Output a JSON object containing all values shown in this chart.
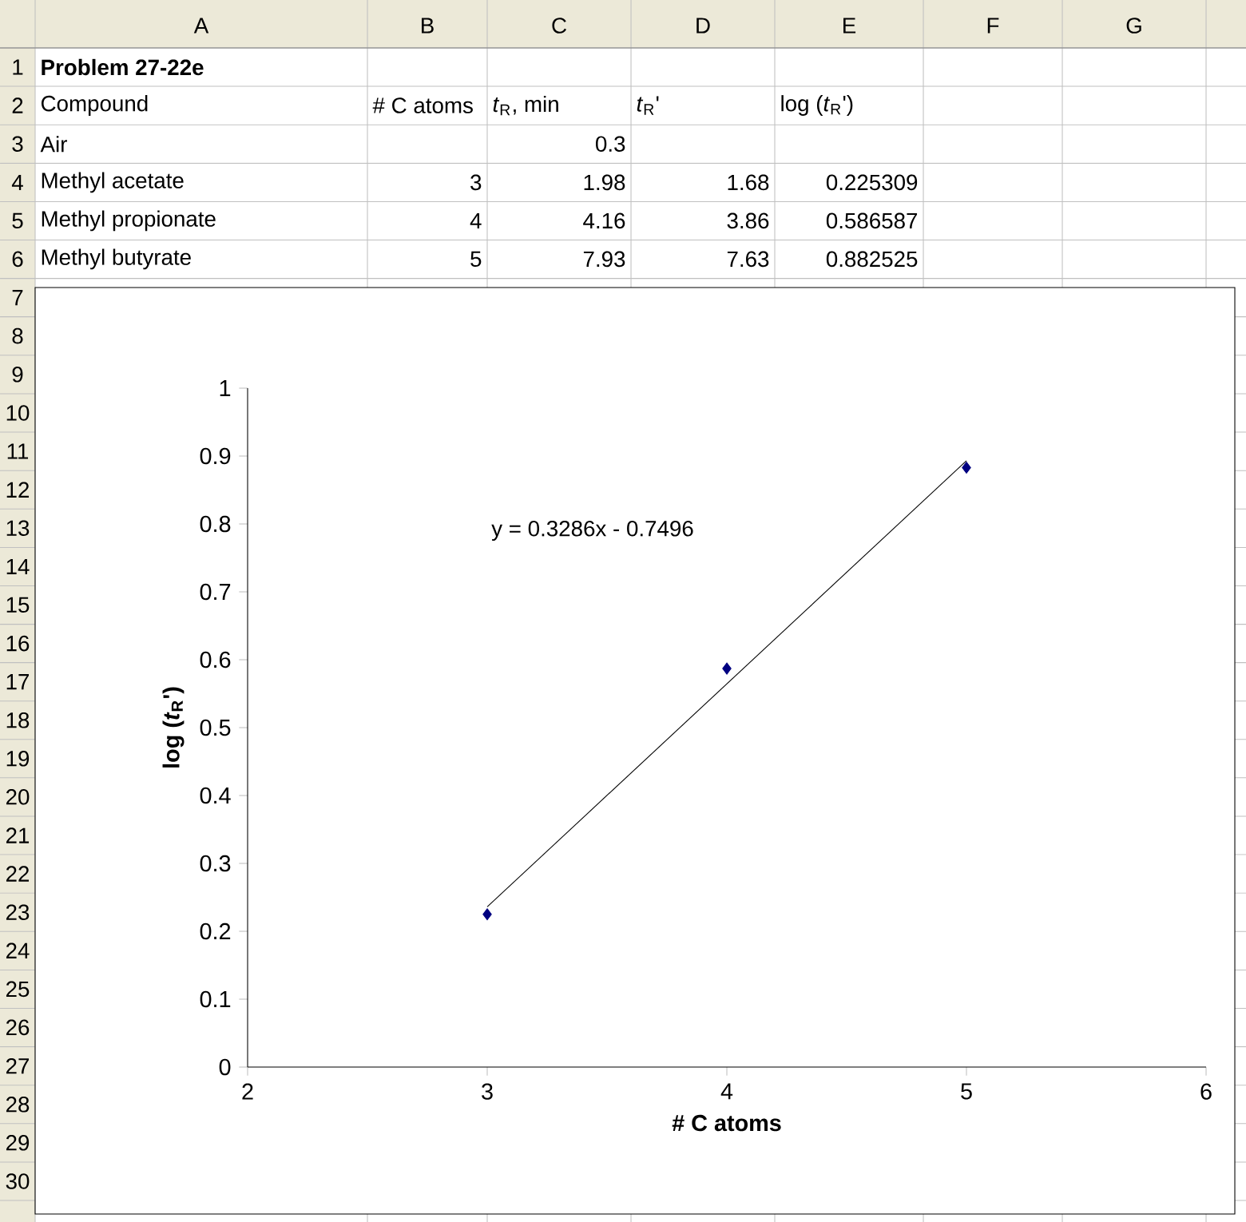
{
  "chart_data": {
    "type": "scatter",
    "series": [
      {
        "color": "#000080",
        "x": [
          3,
          4,
          5
        ],
        "values": [
          0.225,
          0.587,
          0.883
        ]
      },
      {
        "type": "line",
        "marker": "none",
        "color": "#000000",
        "x": [
          3,
          5
        ],
        "values": [
          0.236,
          0.893
        ]
      }
    ],
    "marker": "diamond",
    "xlabel": "# C atoms",
    "ylabel": "log (*t*$_{R}$')",
    "xlim": [
      2,
      6
    ],
    "xticks": [
      2,
      3,
      4,
      5,
      6
    ],
    "ylim": [
      0,
      1
    ],
    "yticks": [
      0,
      0.1,
      0.2,
      0.3,
      0.4,
      0.5,
      0.6,
      0.7,
      0.8,
      0.9,
      1
    ],
    "annotations": [
      "y = 0.3286x - 0.7496",
      "Problem 27-22e",
      "Compound",
      "# C atoms",
      "*t*$_{R}$, min",
      "*t*$_{R}$'",
      "log (*t*$_{R}$')",
      "Air",
      "0.3",
      "Methyl acetate",
      "3",
      "1.98",
      "1.68",
      "0.225309",
      "Methyl propionate",
      "4",
      "4.16",
      "3.86",
      "0.586587",
      "Methyl butyrate",
      "5",
      "7.93",
      "7.63",
      "0.882525",
      "A",
      "B",
      "C",
      "D",
      "E",
      "F",
      "G",
      "1",
      "2",
      "3",
      "4",
      "5",
      "6",
      "7",
      "8",
      "9",
      "10",
      "11",
      "12",
      "13",
      "14",
      "15",
      "16",
      "17",
      "18",
      "19",
      "20",
      "21",
      "22",
      "23",
      "24",
      "25",
      "26",
      "27",
      "28",
      "29",
      "30"
    ]
  }
}
